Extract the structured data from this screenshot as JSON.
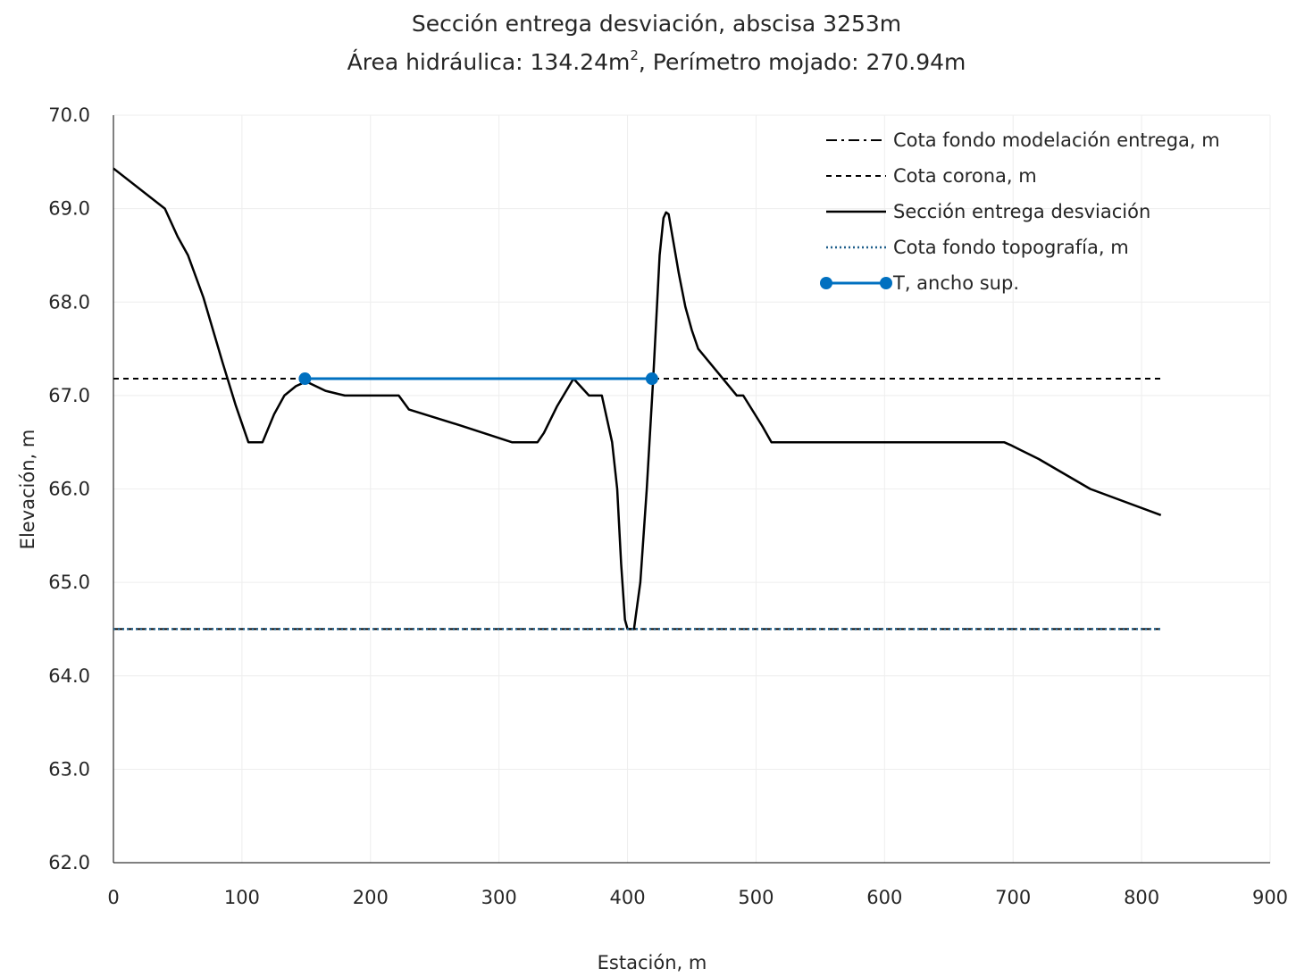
{
  "chart_data": {
    "type": "line",
    "title_line1": "Sección entrega desviación, abscisa 3253m",
    "title_line2_prefix": "Área hidráulica: 134.24m",
    "title_line2_sup": "2",
    "title_line2_suffix": ", Perímetro mojado: 270.94m",
    "xlabel": "Estación, m",
    "ylabel": "Elevación, m",
    "xlim": [
      0,
      900
    ],
    "ylim": [
      62.0,
      70.0
    ],
    "xticks": [
      0,
      100,
      200,
      300,
      400,
      500,
      600,
      700,
      800,
      900
    ],
    "xtick_labels": [
      "0",
      "100",
      "200",
      "300",
      "400",
      "500",
      "600",
      "700",
      "800",
      "900"
    ],
    "yticks": [
      62.0,
      63.0,
      64.0,
      65.0,
      66.0,
      67.0,
      68.0,
      69.0,
      70.0
    ],
    "ytick_labels": [
      "62.0",
      "63.0",
      "64.0",
      "65.0",
      "66.0",
      "67.0",
      "68.0",
      "69.0",
      "70.0"
    ],
    "grid": true,
    "legend_position": "top-right",
    "series": [
      {
        "name": "Cota fondo modelación entrega, m",
        "style": "dash-dot",
        "color": "#000000",
        "x": [
          0,
          815
        ],
        "y": [
          64.5,
          64.5
        ]
      },
      {
        "name": "Cota corona, m",
        "style": "dashed",
        "color": "#000000",
        "x": [
          0,
          815
        ],
        "y": [
          67.18,
          67.18
        ]
      },
      {
        "name": "Sección entrega desviación",
        "style": "solid",
        "color": "#000000",
        "x": [
          0,
          40,
          50,
          58,
          70,
          85,
          95,
          105,
          116,
          125,
          133,
          142,
          150,
          165,
          180,
          200,
          222,
          230,
          270,
          310,
          330,
          335,
          345,
          358,
          370,
          380,
          388,
          392,
          395,
          398,
          400,
          405,
          410,
          415,
          420,
          425,
          428,
          430,
          432,
          435,
          440,
          445,
          450,
          455,
          470,
          485,
          490,
          505,
          512,
          520,
          600,
          693,
          698,
          720,
          760,
          815
        ],
        "y": [
          69.43,
          69.0,
          68.7,
          68.5,
          68.05,
          67.35,
          66.9,
          66.5,
          66.5,
          66.8,
          67.0,
          67.1,
          67.15,
          67.05,
          67.0,
          67.0,
          67.0,
          66.85,
          66.68,
          66.5,
          66.5,
          66.6,
          66.88,
          67.18,
          67.0,
          67.0,
          66.5,
          66.0,
          65.2,
          64.6,
          64.5,
          64.5,
          65.0,
          66.0,
          67.18,
          68.5,
          68.9,
          68.96,
          68.94,
          68.7,
          68.3,
          67.95,
          67.7,
          67.5,
          67.25,
          67.0,
          67.0,
          66.67,
          66.5,
          66.5,
          66.5,
          66.5,
          66.47,
          66.32,
          66.0,
          65.72
        ]
      },
      {
        "name": "Cota fondo topografía, m",
        "style": "dotted",
        "color": "#1f5f8b",
        "x": [
          0,
          815
        ],
        "y": [
          64.5,
          64.5
        ]
      },
      {
        "name": "T, ancho sup.",
        "style": "solid-markers",
        "color": "#0070c0",
        "x": [
          149,
          419
        ],
        "y": [
          67.18,
          67.18
        ]
      }
    ]
  }
}
